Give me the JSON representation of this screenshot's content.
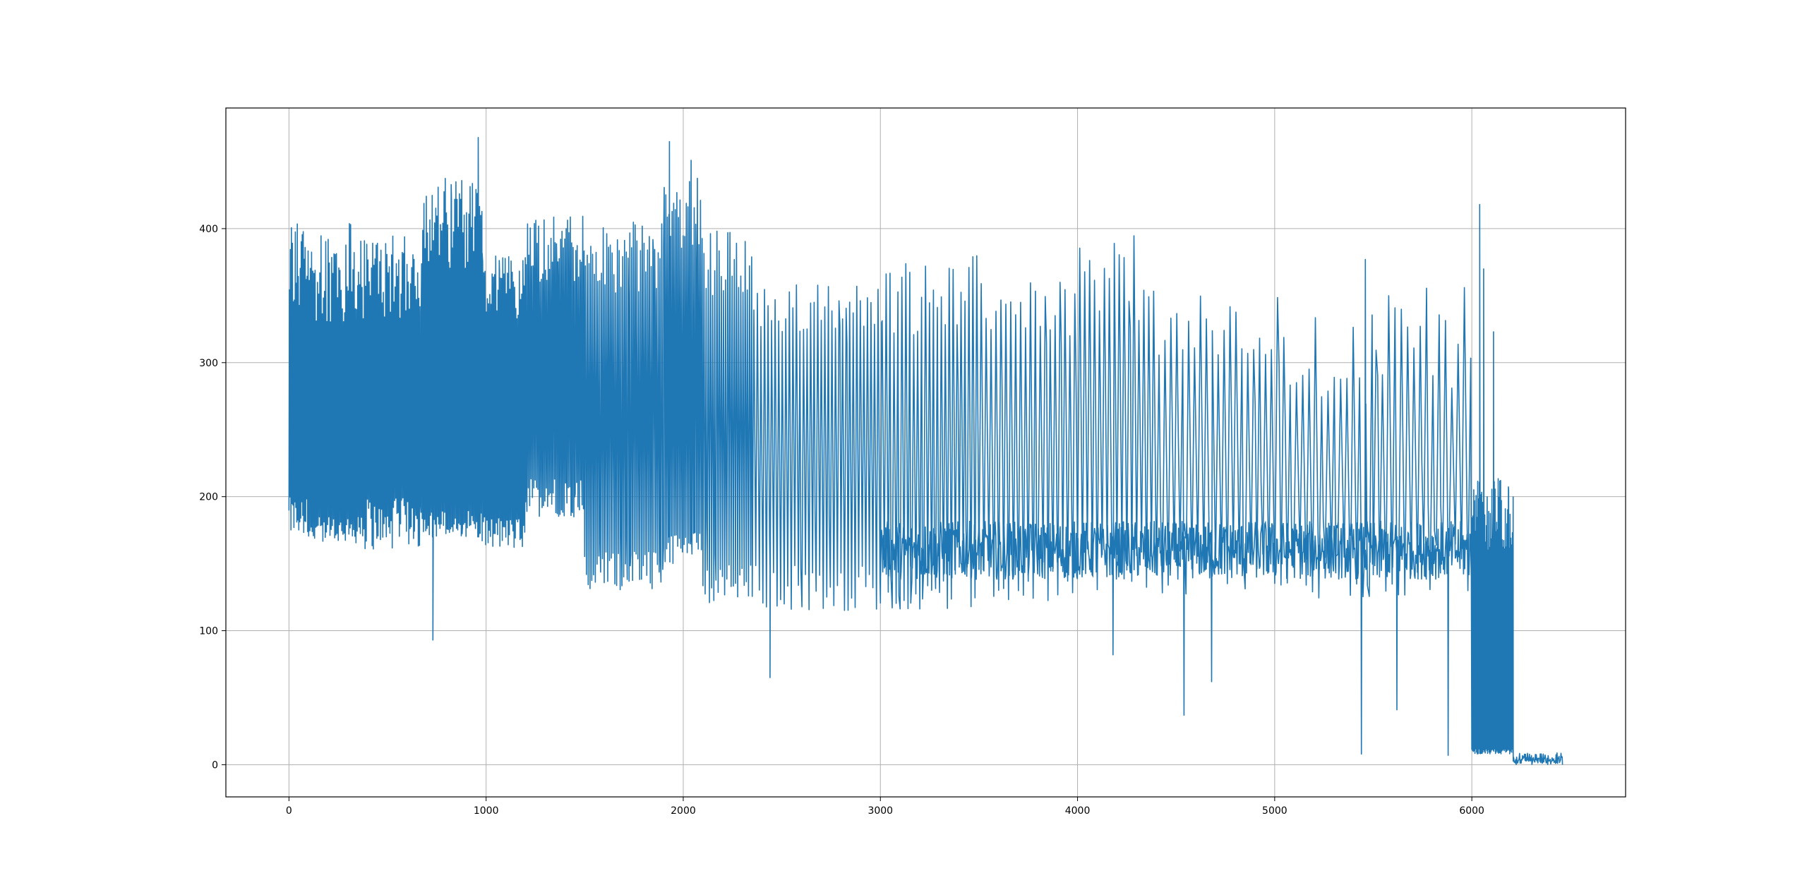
{
  "chart_data": {
    "type": "line",
    "title": "",
    "xlabel": "",
    "ylabel": "",
    "xlim": [
      -320,
      6780
    ],
    "ylim": [
      -24,
      490
    ],
    "xticks": [
      0,
      1000,
      2000,
      3000,
      4000,
      5000,
      6000
    ],
    "yticks": [
      0,
      100,
      200,
      300,
      400
    ],
    "grid": true,
    "legend": "none",
    "line_color": "#1f77b4",
    "series": [
      {
        "segments": [
          {
            "x0": 0,
            "x1": 100,
            "period": 5,
            "lo": [
              170,
              200
            ],
            "hi": [
              330,
              410
            ]
          },
          {
            "x0": 100,
            "x1": 350,
            "period": 6,
            "lo": [
              165,
              185
            ],
            "hi": [
              330,
              405
            ]
          },
          {
            "x0": 350,
            "x1": 670,
            "period": 6,
            "lo": [
              160,
              200
            ],
            "hi": [
              330,
              395
            ]
          },
          {
            "x0": 670,
            "x1": 980,
            "period": 6,
            "lo": [
              170,
              190
            ],
            "hi": [
              370,
              440
            ]
          },
          {
            "x0": 980,
            "x1": 1200,
            "period": 6,
            "lo": [
              160,
              185
            ],
            "hi": [
              330,
              380
            ]
          },
          {
            "x0": 1200,
            "x1": 1500,
            "period": 7,
            "lo": [
              185,
              215
            ],
            "hi": [
              360,
              415
            ]
          },
          {
            "x0": 1500,
            "x1": 1900,
            "period": 9,
            "lo": [
              130,
              160
            ],
            "hi": [
              350,
              405
            ]
          },
          {
            "x0": 1900,
            "x1": 2100,
            "period": 8,
            "lo": [
              150,
              175
            ],
            "hi": [
              380,
              450
            ]
          },
          {
            "x0": 2100,
            "x1": 2350,
            "period": 11,
            "lo": [
              120,
              150
            ],
            "hi": [
              350,
              400
            ]
          },
          {
            "x0": 2350,
            "x1": 3000,
            "period": 18,
            "lo": [
              115,
              150
            ],
            "hi": [
              320,
              360
            ]
          },
          {
            "x0": 3000,
            "x1": 3500,
            "period": 20,
            "lo": [
              115,
              150
            ],
            "hi": [
              320,
              380
            ]
          },
          {
            "x0": 3500,
            "x1": 4000,
            "period": 25,
            "lo": [
              120,
              155
            ],
            "hi": [
              320,
              360
            ]
          },
          {
            "x0": 4000,
            "x1": 4400,
            "period": 25,
            "lo": [
              130,
              165
            ],
            "hi": [
              330,
              395
            ]
          },
          {
            "x0": 4400,
            "x1": 5000,
            "period": 30,
            "lo": [
              125,
              160
            ],
            "hi": [
              290,
              350
            ]
          },
          {
            "x0": 5000,
            "x1": 5500,
            "period": 32,
            "lo": [
              120,
              160
            ],
            "hi": [
              260,
              350
            ]
          },
          {
            "x0": 5500,
            "x1": 6000,
            "period": 32,
            "lo": [
              125,
              165
            ],
            "hi": [
              280,
              360
            ]
          },
          {
            "x0": 6000,
            "x1": 6210,
            "period": 4,
            "lo": [
              8,
              12
            ],
            "hi": [
              160,
              215
            ]
          },
          {
            "x0": 6210,
            "x1": 6460,
            "period": 5,
            "lo": [
              0,
              6
            ],
            "hi": [
              1,
              9
            ]
          }
        ],
        "noise_band": {
          "x0": 3000,
          "x1": 6000,
          "center": 160,
          "spread": 22
        },
        "spikes": [
          {
            "x": 730,
            "y": 93
          },
          {
            "x": 960,
            "y": 468
          },
          {
            "x": 1930,
            "y": 465
          },
          {
            "x": 2040,
            "y": 451
          },
          {
            "x": 2440,
            "y": 65
          },
          {
            "x": 4180,
            "y": 82
          },
          {
            "x": 4540,
            "y": 37
          },
          {
            "x": 4680,
            "y": 62
          },
          {
            "x": 5440,
            "y": 8
          },
          {
            "x": 5460,
            "y": 377
          },
          {
            "x": 5620,
            "y": 41
          },
          {
            "x": 5880,
            "y": 7
          },
          {
            "x": 6040,
            "y": 418
          },
          {
            "x": 6060,
            "y": 370
          },
          {
            "x": 6110,
            "y": 323
          }
        ]
      }
    ]
  }
}
